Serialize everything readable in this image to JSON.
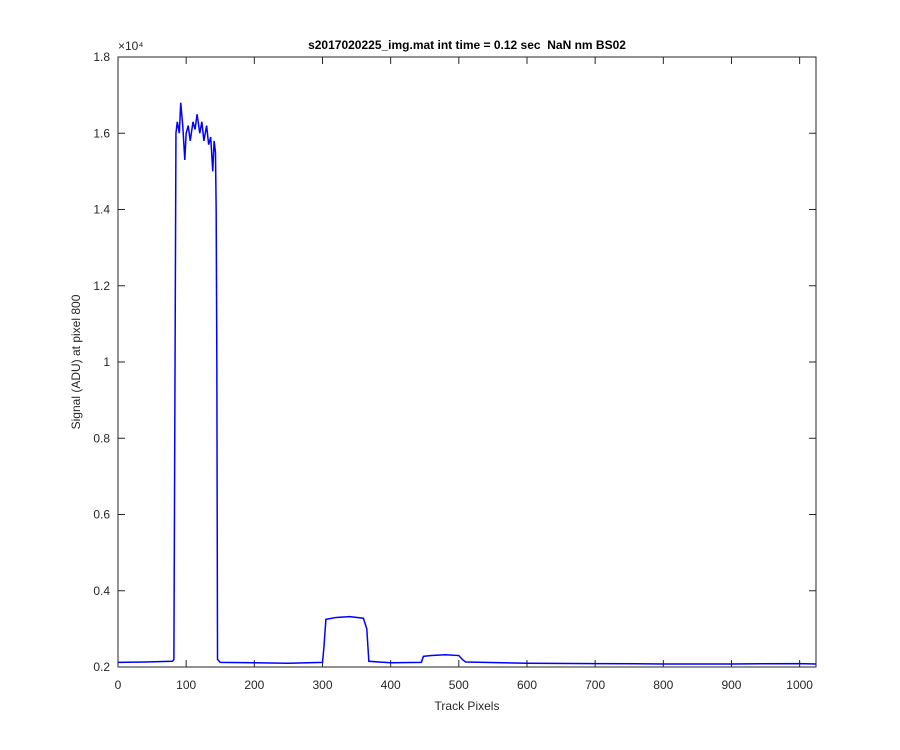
{
  "chart_data": {
    "type": "line",
    "title": "s2017020225_img.mat int time = 0.12 sec  NaN nm BS02",
    "x_label": "Track Pixels",
    "y_label": "Signal (ADU) at pixel 800",
    "y_multiplier": "×10⁴",
    "xlim": [
      0,
      1024
    ],
    "ylim": [
      0.2,
      1.8
    ],
    "xticks": [
      0,
      100,
      200,
      300,
      400,
      500,
      600,
      700,
      800,
      900,
      1000
    ],
    "yticks": [
      0.2,
      0.4,
      0.6,
      0.8,
      1,
      1.2,
      1.4,
      1.6,
      1.8
    ],
    "series": [
      {
        "name": "Signal",
        "color": "#0000ff",
        "x": [
          0,
          40,
          80,
          82,
          85,
          87,
          90,
          92,
          95,
          98,
          100,
          103,
          106,
          110,
          113,
          116,
          120,
          123,
          126,
          130,
          133,
          136,
          139,
          141,
          143,
          144,
          145,
          146,
          150,
          200,
          250,
          300,
          302,
          305,
          320,
          340,
          360,
          365,
          368,
          400,
          445,
          448,
          460,
          480,
          500,
          505,
          510,
          600,
          700,
          800,
          900,
          1000,
          1024
        ],
        "values": [
          0.212,
          0.213,
          0.215,
          0.22,
          1.6,
          1.63,
          1.6,
          1.68,
          1.62,
          1.53,
          1.6,
          1.62,
          1.58,
          1.63,
          1.61,
          1.65,
          1.6,
          1.63,
          1.58,
          1.62,
          1.57,
          1.59,
          1.5,
          1.58,
          1.55,
          1.4,
          1.0,
          0.22,
          0.212,
          0.211,
          0.21,
          0.212,
          0.25,
          0.325,
          0.33,
          0.332,
          0.328,
          0.3,
          0.215,
          0.211,
          0.212,
          0.228,
          0.23,
          0.232,
          0.23,
          0.22,
          0.213,
          0.21,
          0.209,
          0.208,
          0.208,
          0.209,
          0.208
        ]
      }
    ]
  }
}
